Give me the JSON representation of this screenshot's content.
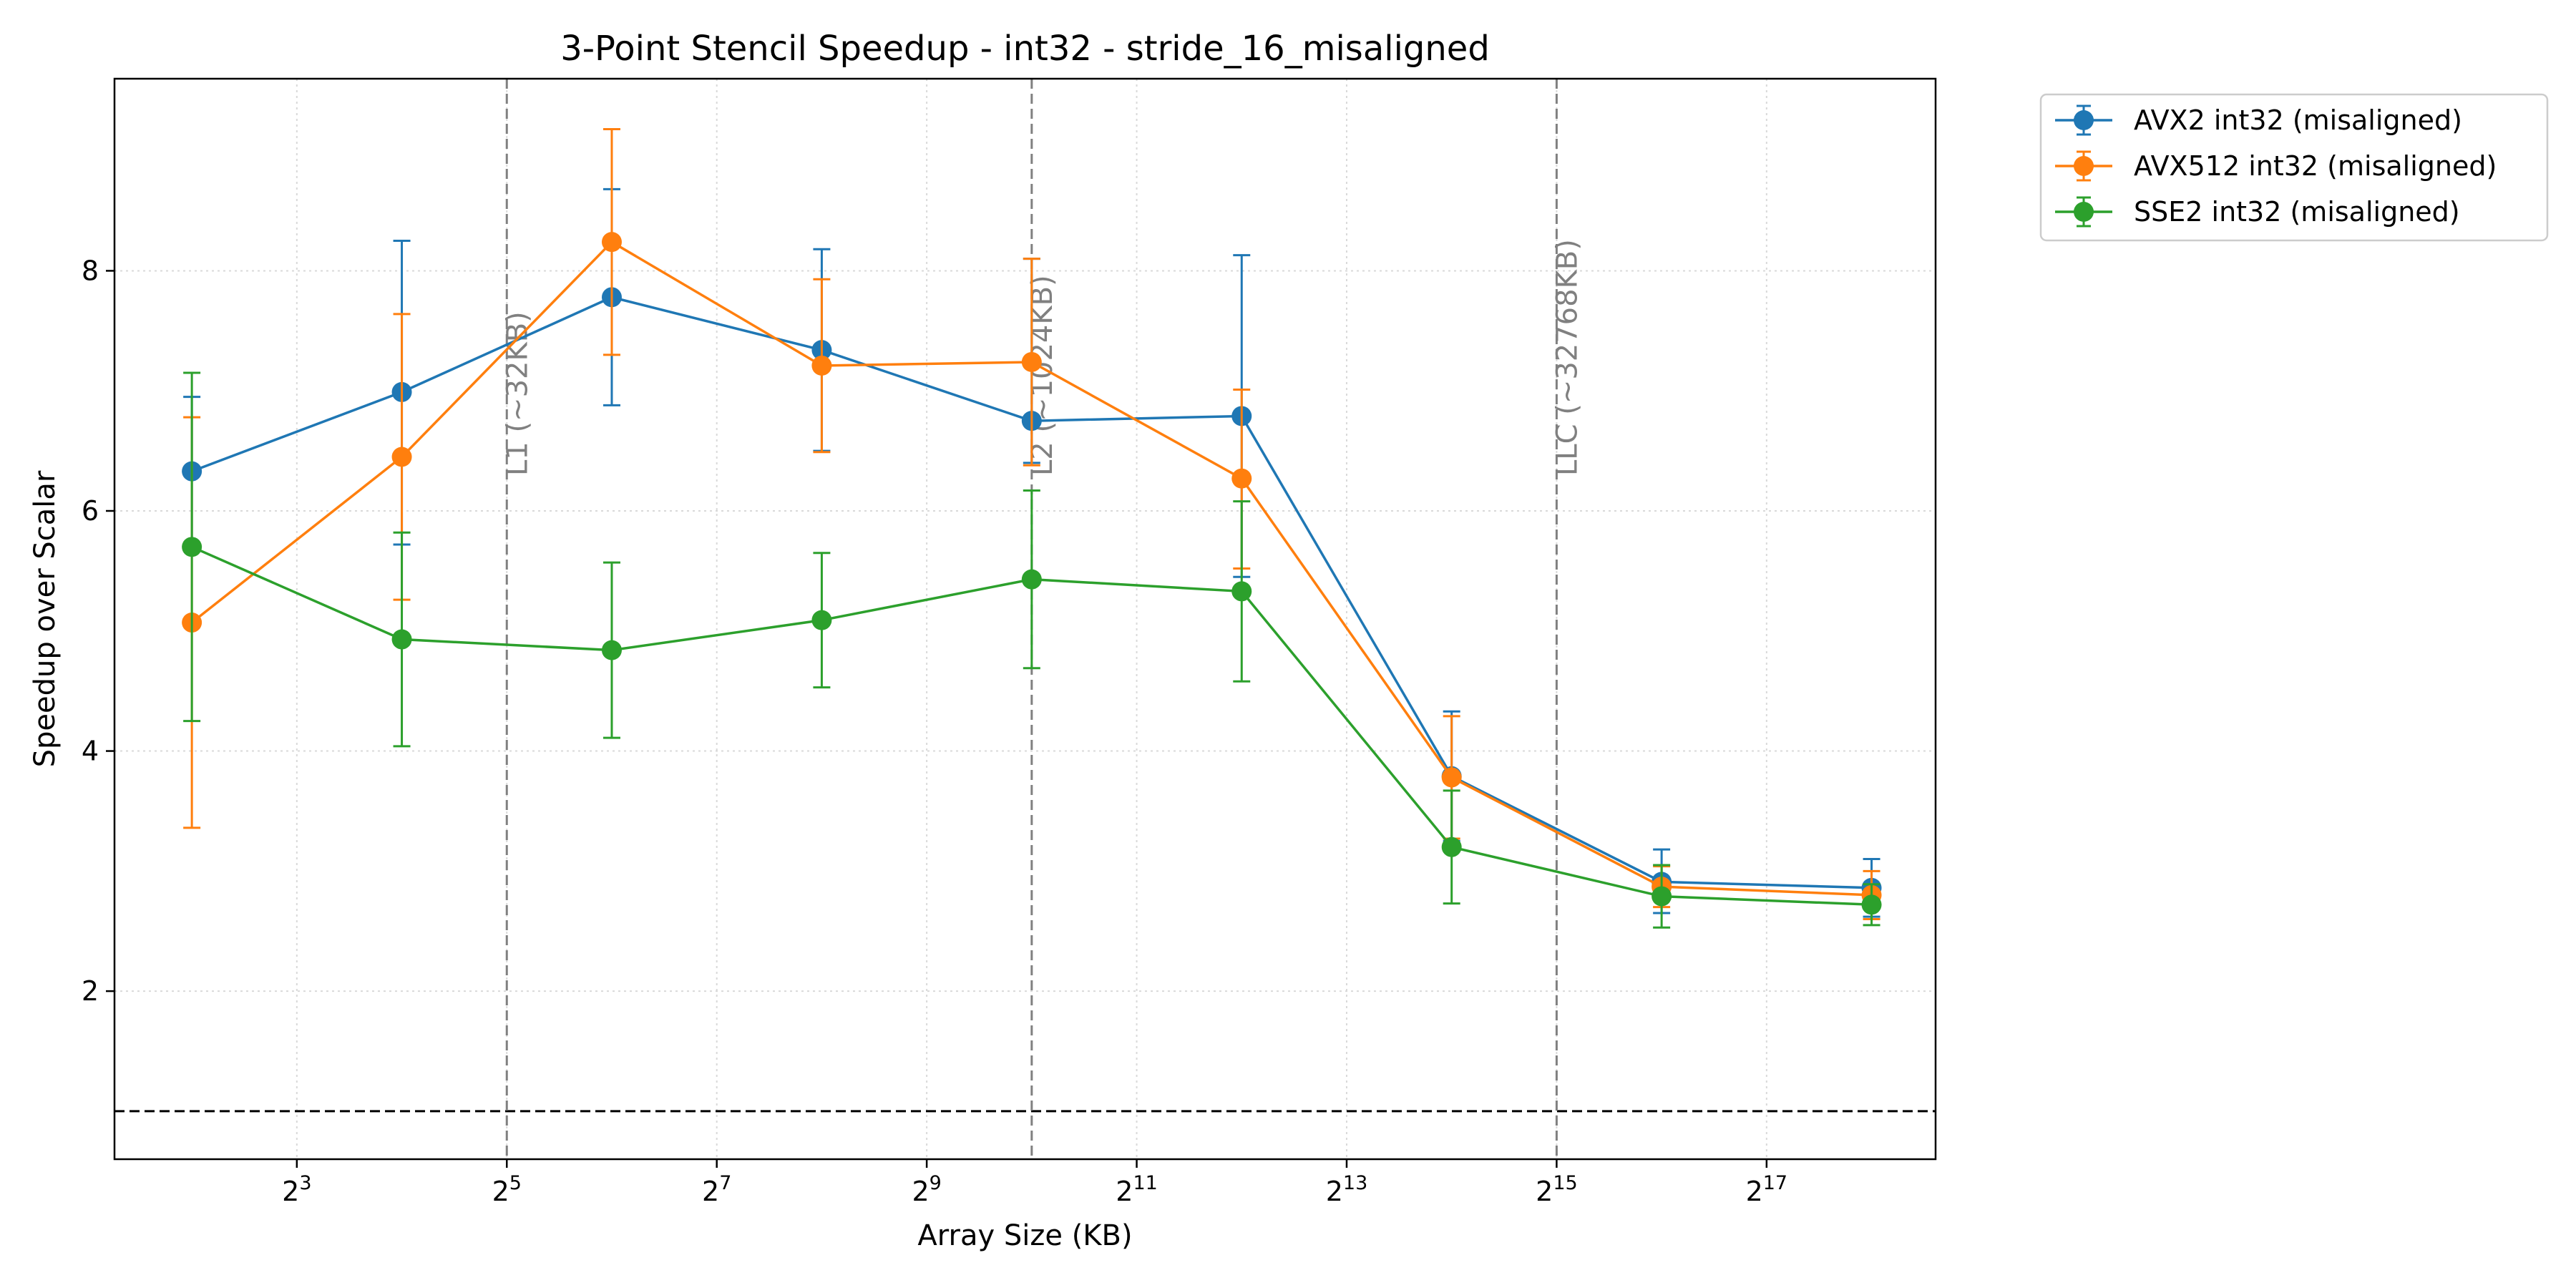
{
  "chart_data": {
    "type": "line",
    "title": "3-Point Stencil Speedup - int32 - stride_16_misaligned",
    "xlabel": "Array Size (KB)",
    "ylabel": "Speedup over Scalar",
    "xscale": "log2",
    "x": [
      4,
      16,
      64,
      256,
      1024,
      4096,
      16384,
      65536,
      262144
    ],
    "xlim": [
      2.4,
      400000
    ],
    "ylim": [
      0.6,
      9.6
    ],
    "x_ticks": [
      {
        "value": 8,
        "base": "2",
        "exp": "3"
      },
      {
        "value": 32,
        "base": "2",
        "exp": "5"
      },
      {
        "value": 128,
        "base": "2",
        "exp": "7"
      },
      {
        "value": 512,
        "base": "2",
        "exp": "9"
      },
      {
        "value": 2048,
        "base": "2",
        "exp": "11"
      },
      {
        "value": 8192,
        "base": "2",
        "exp": "13"
      },
      {
        "value": 32768,
        "base": "2",
        "exp": "15"
      },
      {
        "value": 131072,
        "base": "2",
        "exp": "17"
      }
    ],
    "y_ticks": [
      2,
      4,
      6,
      8
    ],
    "grid": true,
    "legend_position": "outside-top-right",
    "series": [
      {
        "name": "AVX2 int32 (misaligned)",
        "color": "#1f77b4",
        "values": [
          6.33,
          6.99,
          7.78,
          7.34,
          6.75,
          6.79,
          3.79,
          2.91,
          2.86
        ],
        "err_low": [
          5.72,
          5.72,
          6.88,
          6.5,
          6.4,
          5.45,
          3.25,
          2.65,
          2.62
        ],
        "err_high": [
          6.95,
          8.25,
          8.68,
          8.18,
          8.1,
          8.13,
          4.33,
          3.18,
          3.1
        ]
      },
      {
        "name": "AVX512 int32 (misaligned)",
        "color": "#ff7f0e",
        "values": [
          5.07,
          6.45,
          8.24,
          7.21,
          7.24,
          6.27,
          3.78,
          2.87,
          2.8
        ],
        "err_low": [
          3.36,
          5.26,
          7.3,
          6.49,
          6.38,
          5.52,
          3.27,
          2.7,
          2.6
        ],
        "err_high": [
          6.78,
          7.64,
          9.18,
          7.93,
          8.1,
          7.01,
          4.29,
          3.04,
          3.0
        ]
      },
      {
        "name": "SSE2 int32 (misaligned)",
        "color": "#2ca02c",
        "values": [
          5.7,
          4.93,
          4.84,
          5.09,
          5.43,
          5.33,
          3.2,
          2.79,
          2.72
        ],
        "err_low": [
          4.25,
          4.04,
          4.11,
          4.53,
          4.69,
          4.58,
          2.73,
          2.53,
          2.55
        ],
        "err_high": [
          7.15,
          5.82,
          5.57,
          5.65,
          6.17,
          6.08,
          3.67,
          3.05,
          2.89
        ]
      }
    ],
    "vlines": [
      {
        "x": 32,
        "label": "L1 (~32KB)"
      },
      {
        "x": 1024,
        "label": "L2 (~1024KB)"
      },
      {
        "x": 32768,
        "label": "LLC (~32768KB)"
      }
    ],
    "hline": {
      "y": 1.0
    }
  }
}
